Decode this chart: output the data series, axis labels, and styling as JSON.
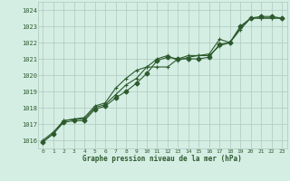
{
  "xlabel": "Graphe pression niveau de la mer (hPa)",
  "xlim": [
    -0.5,
    23.5
  ],
  "ylim": [
    1015.5,
    1024.5
  ],
  "yticks": [
    1016,
    1017,
    1018,
    1019,
    1020,
    1021,
    1022,
    1023,
    1024
  ],
  "xticks": [
    0,
    1,
    2,
    3,
    4,
    5,
    6,
    7,
    8,
    9,
    10,
    11,
    12,
    13,
    14,
    15,
    16,
    17,
    18,
    19,
    20,
    21,
    22,
    23
  ],
  "bg_color": "#d4eee4",
  "grid_color": "#b0c8c0",
  "line_color": "#2d5a2d",
  "series1": [
    1015.9,
    1016.4,
    1017.1,
    1017.2,
    1017.2,
    1017.9,
    1018.1,
    1018.6,
    1019.0,
    1019.5,
    1020.1,
    1020.9,
    1021.1,
    1021.0,
    1021.0,
    1021.0,
    1021.1,
    1021.9,
    1022.0,
    1023.0,
    1023.5,
    1023.6,
    1023.6,
    1023.5
  ],
  "series2": [
    1015.9,
    1016.4,
    1017.2,
    1017.3,
    1017.3,
    1018.0,
    1018.2,
    1018.8,
    1019.4,
    1019.8,
    1020.5,
    1021.0,
    1021.2,
    1020.9,
    1021.1,
    1021.2,
    1021.3,
    1022.2,
    1022.0,
    1022.9,
    1023.5,
    1023.5,
    1023.5,
    1023.5
  ],
  "series3": [
    1016.0,
    1016.5,
    1017.2,
    1017.3,
    1017.4,
    1018.1,
    1018.3,
    1019.2,
    1019.8,
    1020.3,
    1020.5,
    1020.5,
    1020.5,
    1021.0,
    1021.2,
    1021.2,
    1021.2,
    1021.8,
    1022.0,
    1022.8,
    1023.5,
    1023.5,
    1023.5,
    1023.5
  ],
  "linewidth": 0.8,
  "markersize_plus": 3.5,
  "markersize_diamond": 2.5
}
